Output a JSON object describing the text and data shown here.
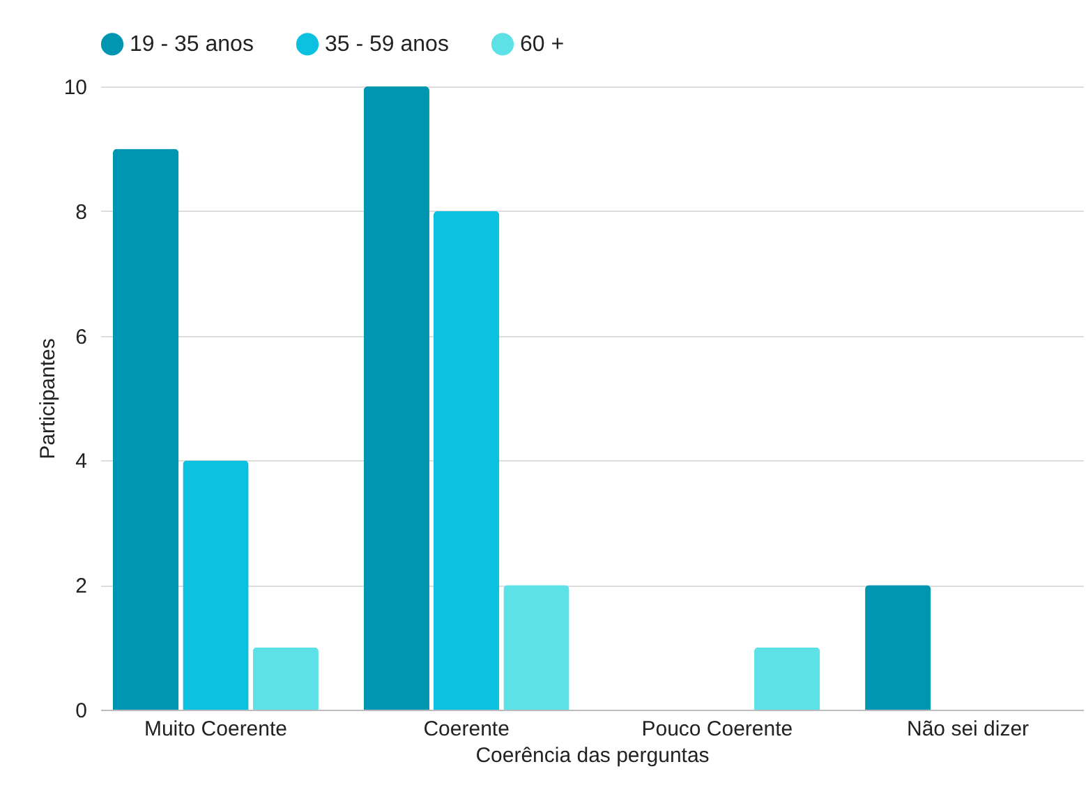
{
  "chart_data": {
    "type": "bar",
    "xlabel": "Coerência das perguntas",
    "ylabel": "Participantes",
    "categories": [
      "Muito Coerente",
      "Coerente",
      "Pouco Coerente",
      "Não sei dizer"
    ],
    "series": [
      {
        "name": "19 - 35 anos",
        "color": "#0096b2",
        "values": [
          9,
          10,
          0,
          2
        ]
      },
      {
        "name": "35 - 59 anos",
        "color": "#0cc0df",
        "values": [
          4,
          8,
          0,
          0
        ]
      },
      {
        "name": "60 +",
        "color": "#5ce1e6",
        "values": [
          1,
          2,
          1,
          0
        ]
      }
    ],
    "ylim": [
      0,
      10
    ],
    "yticks": [
      0,
      2,
      4,
      6,
      8,
      10
    ],
    "grid": "y",
    "legend": "top"
  }
}
